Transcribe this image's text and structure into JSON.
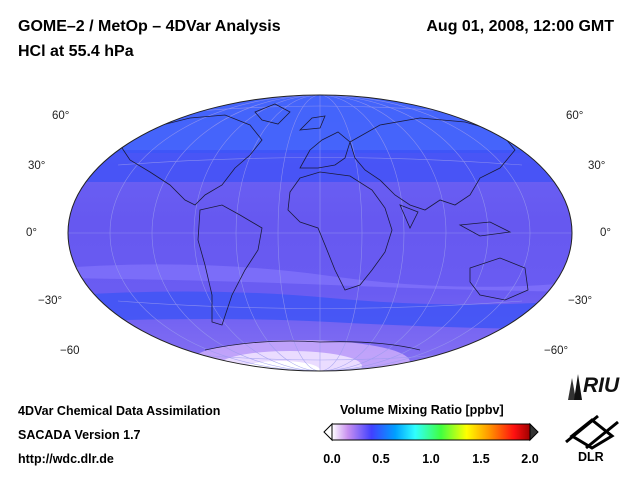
{
  "header": {
    "title": "GOME–2 / MetOp – 4DVar Analysis",
    "species": "HCl at 55.4 hPa",
    "datetime": "Aug 01, 2008, 12:00 GMT"
  },
  "footer": {
    "line1": "4DVar Chemical Data Assimilation",
    "line2": "SACADA Version 1.7",
    "line3": "http://wdc.dlr.de"
  },
  "colorbar": {
    "title": "Volume Mixing Ratio [ppbv]",
    "ticks": [
      "0.0",
      "0.5",
      "1.0",
      "1.5",
      "2.0"
    ],
    "range": [
      0.0,
      2.0
    ],
    "colors": [
      "#ffffff",
      "#c890f0",
      "#4040ff",
      "#00a0ff",
      "#30ffff",
      "#40ff40",
      "#ffff00",
      "#ff9000",
      "#ff1010",
      "#a00000"
    ]
  },
  "map": {
    "projection": "Hammer-Aitoff",
    "latitude_labels_left": [
      "60°",
      "30°",
      "0°",
      "−30°",
      "−60"
    ],
    "latitude_labels_right": [
      "60°",
      "30°",
      "0°",
      "−30°",
      "−60°"
    ],
    "ocean_color": "#6a5cf2",
    "polar_high_color": "#e8d8ff"
  },
  "logos": {
    "institute": "RIU",
    "agency": "DLR"
  }
}
